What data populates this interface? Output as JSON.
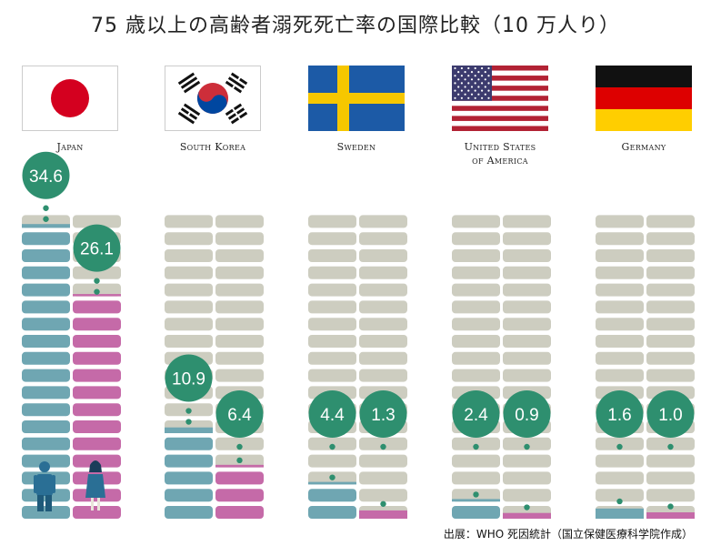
{
  "title": "75 歳以上の高齢者溺死死亡率の国際比較（10 万人り）",
  "source": "出展：WHO 死因統計（国立保健医療科学院作成）",
  "colors": {
    "male": "#6fa6b2",
    "female": "#c56aa8",
    "empty": "#cdcdc0",
    "bubble": "#2e8f6f",
    "bubble_text": "#ffffff"
  },
  "chart_data": {
    "type": "bar",
    "title": "75 歳以上の高齢者溺死死亡率の国際比較（10 万人り）",
    "xlabel": "",
    "ylabel": "",
    "ylim": [
      0,
      36
    ],
    "units_per_segment": 2,
    "categories": [
      "Japan",
      "South Korea",
      "Sweden",
      "United States of America",
      "Germany"
    ],
    "series": [
      {
        "values": [
          34.6,
          10.9,
          4.4,
          2.4,
          1.6
        ],
        "color": "#6fa6b2"
      },
      {
        "values": [
          26.1,
          6.4,
          1.3,
          0.9,
          1.0
        ],
        "color": "#c56aa8"
      }
    ]
  },
  "countries": [
    {
      "name": "Japan",
      "flag": "japan-flag"
    },
    {
      "name": "South Korea",
      "flag": "south-korea-flag"
    },
    {
      "name": "Sweden",
      "flag": "sweden-flag"
    },
    {
      "name": "United States\nof America",
      "flag": "usa-flag"
    },
    {
      "name": "Germany",
      "flag": "germany-flag"
    }
  ],
  "icons": {
    "male": "man-icon",
    "female": "woman-icon"
  }
}
